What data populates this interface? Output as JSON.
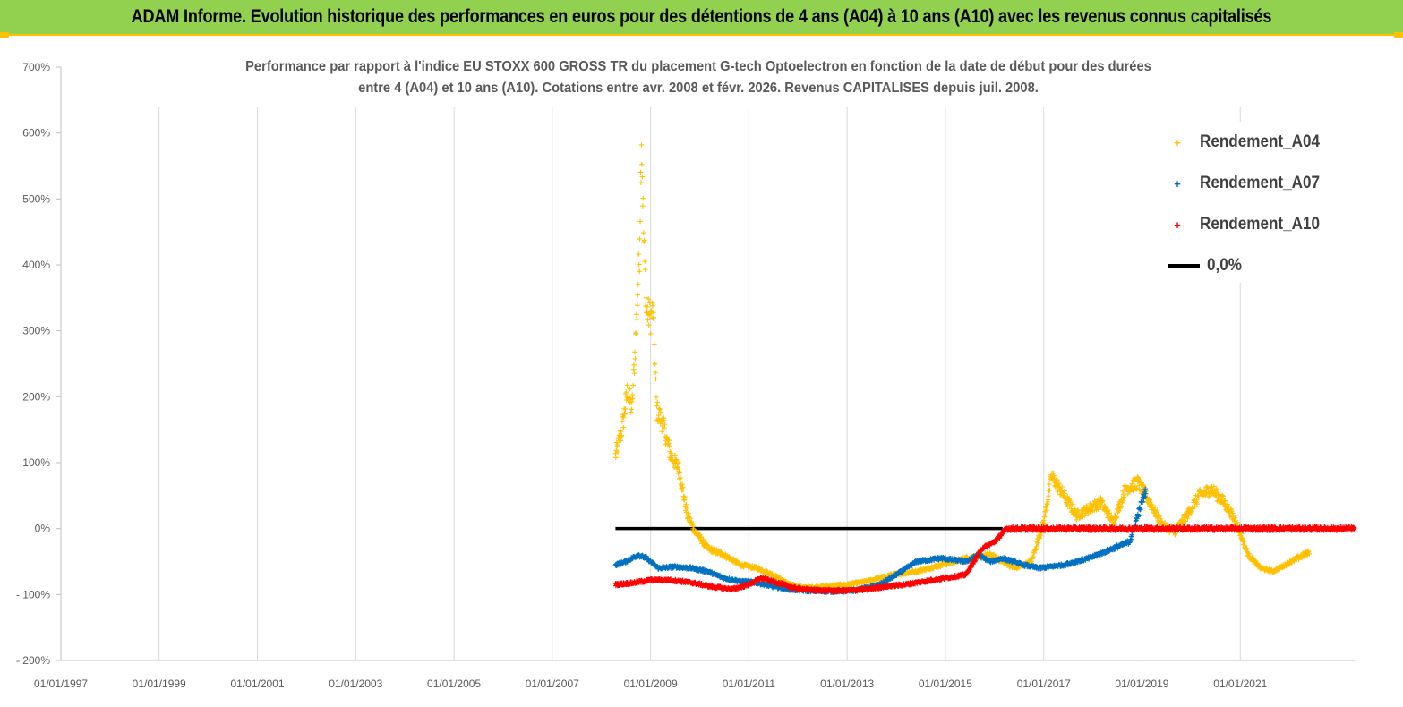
{
  "banner": {
    "title": "ADAM Informe. Evolution historique des performances en euros pour des détentions de 4 ans (A04) à 10 ans (A10) avec les revenus connus capitalisés"
  },
  "colors": {
    "banner_bg": "#92d050",
    "accent": "#ffc000",
    "series_A04": "#ffc000",
    "series_A07": "#0070c0",
    "series_A10": "#ff0000",
    "zero_line": "#000000",
    "axis_text": "#595959"
  },
  "chart_data": {
    "type": "scatter",
    "title_line1": "Performance par rapport à l'indice EU STOXX 600 GROSS TR  du placement G-tech Optoelectron  en fonction de la date de début pour des durées",
    "title_line2": "entre 4 (A04) et 10 ans (A10).  Cotations entre avr. 2008 et févr. 2026. Revenus CAPITALISES depuis juil. 2008.",
    "xlabel": "",
    "ylabel": "",
    "x_type": "date",
    "xlim": [
      "1997-01-01",
      "2023-05-01"
    ],
    "ylim": [
      -200,
      700
    ],
    "y_unit": "%",
    "grid": "vertical",
    "legend_position": "top-right",
    "x_tick_labels": [
      "01/01/1997",
      "01/01/1999",
      "01/01/2001",
      "01/01/2003",
      "01/01/2005",
      "01/01/2007",
      "01/01/2009",
      "01/01/2011",
      "01/01/2013",
      "01/01/2015",
      "01/01/2017",
      "01/01/2019",
      "01/01/2021"
    ],
    "y_tick_labels": [
      "700%",
      "600%",
      "500%",
      "400%",
      "300%",
      "200%",
      "100%",
      "0%",
      "-100%",
      "-200%"
    ],
    "series": [
      {
        "name": "Rendement_A04",
        "marker": "+",
        "points": [
          [
            "2008-04-15",
            110
          ],
          [
            "2008-06-01",
            150
          ],
          [
            "2008-07-15",
            210
          ],
          [
            "2008-08-15",
            180
          ],
          [
            "2008-09-15",
            300
          ],
          [
            "2008-10-10",
            420
          ],
          [
            "2008-10-25",
            600
          ],
          [
            "2008-11-10",
            450
          ],
          [
            "2008-12-01",
            330
          ],
          [
            "2009-01-01",
            320
          ],
          [
            "2009-01-20",
            330
          ],
          [
            "2009-02-15",
            180
          ],
          [
            "2009-04-01",
            160
          ],
          [
            "2009-06-01",
            110
          ],
          [
            "2009-08-01",
            90
          ],
          [
            "2009-10-01",
            20
          ],
          [
            "2009-12-01",
            -5
          ],
          [
            "2010-03-01",
            -30
          ],
          [
            "2010-07-01",
            -40
          ],
          [
            "2010-11-01",
            -55
          ],
          [
            "2011-03-01",
            -60
          ],
          [
            "2011-07-01",
            -70
          ],
          [
            "2011-11-01",
            -85
          ],
          [
            "2012-03-01",
            -90
          ],
          [
            "2012-07-01",
            -88
          ],
          [
            "2013-01-01",
            -85
          ],
          [
            "2013-06-01",
            -80
          ],
          [
            "2013-12-01",
            -70
          ],
          [
            "2014-06-01",
            -65
          ],
          [
            "2014-12-01",
            -55
          ],
          [
            "2015-06-01",
            -45
          ],
          [
            "2015-12-01",
            -40
          ],
          [
            "2016-06-01",
            -60
          ],
          [
            "2016-10-01",
            -50
          ],
          [
            "2017-01-01",
            10
          ],
          [
            "2017-03-01",
            80
          ],
          [
            "2017-06-01",
            50
          ],
          [
            "2017-09-01",
            20
          ],
          [
            "2017-12-01",
            30
          ],
          [
            "2018-03-01",
            40
          ],
          [
            "2018-06-01",
            10
          ],
          [
            "2018-09-01",
            60
          ],
          [
            "2018-12-01",
            70
          ],
          [
            "2019-03-01",
            40
          ],
          [
            "2019-06-01",
            5
          ],
          [
            "2019-09-01",
            -5
          ],
          [
            "2019-12-01",
            20
          ],
          [
            "2020-03-01",
            50
          ],
          [
            "2020-06-01",
            60
          ],
          [
            "2020-09-01",
            40
          ],
          [
            "2020-12-01",
            10
          ],
          [
            "2021-03-01",
            -40
          ],
          [
            "2021-06-01",
            -60
          ],
          [
            "2021-09-01",
            -65
          ],
          [
            "2021-12-01",
            -55
          ],
          [
            "2022-03-01",
            -45
          ],
          [
            "2022-06-01",
            -35
          ]
        ]
      },
      {
        "name": "Rendement_A07",
        "marker": "+",
        "points": [
          [
            "2008-04-15",
            -55
          ],
          [
            "2008-07-01",
            -50
          ],
          [
            "2008-10-01",
            -40
          ],
          [
            "2008-12-01",
            -45
          ],
          [
            "2009-03-01",
            -60
          ],
          [
            "2009-07-01",
            -58
          ],
          [
            "2009-11-01",
            -60
          ],
          [
            "2010-03-01",
            -65
          ],
          [
            "2010-07-01",
            -75
          ],
          [
            "2010-11-01",
            -80
          ],
          [
            "2011-03-01",
            -82
          ],
          [
            "2011-07-01",
            -88
          ],
          [
            "2011-11-01",
            -92
          ],
          [
            "2012-03-01",
            -94
          ],
          [
            "2012-09-01",
            -95
          ],
          [
            "2013-03-01",
            -94
          ],
          [
            "2013-09-01",
            -85
          ],
          [
            "2014-01-01",
            -70
          ],
          [
            "2014-06-01",
            -50
          ],
          [
            "2014-12-01",
            -45
          ],
          [
            "2015-06-01",
            -50
          ],
          [
            "2015-09-01",
            -40
          ],
          [
            "2015-12-01",
            -50
          ],
          [
            "2016-03-01",
            -45
          ],
          [
            "2016-08-01",
            -55
          ],
          [
            "2016-12-01",
            -60
          ],
          [
            "2017-06-01",
            -55
          ],
          [
            "2017-12-01",
            -45
          ],
          [
            "2018-06-01",
            -30
          ],
          [
            "2018-10-01",
            -20
          ],
          [
            "2018-12-01",
            20
          ],
          [
            "2019-02-01",
            60
          ]
        ]
      },
      {
        "name": "Rendement_A10",
        "marker": "+",
        "points": [
          [
            "2008-04-15",
            -85
          ],
          [
            "2008-09-01",
            -82
          ],
          [
            "2009-01-01",
            -78
          ],
          [
            "2009-06-01",
            -78
          ],
          [
            "2009-11-01",
            -82
          ],
          [
            "2010-04-01",
            -88
          ],
          [
            "2010-09-01",
            -92
          ],
          [
            "2011-01-01",
            -85
          ],
          [
            "2011-04-01",
            -75
          ],
          [
            "2011-08-01",
            -82
          ],
          [
            "2011-12-01",
            -90
          ],
          [
            "2012-04-01",
            -93
          ],
          [
            "2012-08-01",
            -94
          ],
          [
            "2013-01-01",
            -94
          ],
          [
            "2013-06-01",
            -92
          ],
          [
            "2013-10-01",
            -88
          ],
          [
            "2014-03-01",
            -85
          ],
          [
            "2014-08-01",
            -80
          ],
          [
            "2015-01-01",
            -75
          ],
          [
            "2015-06-01",
            -70
          ],
          [
            "2015-10-01",
            -30
          ],
          [
            "2016-01-01",
            -20
          ],
          [
            "2016-04-01",
            0
          ],
          [
            "2023-05-01",
            0
          ]
        ]
      },
      {
        "name": "0,0%",
        "marker": "line",
        "points": [
          [
            "2008-04-15",
            0
          ],
          [
            "2016-03-01",
            0
          ]
        ]
      }
    ]
  }
}
